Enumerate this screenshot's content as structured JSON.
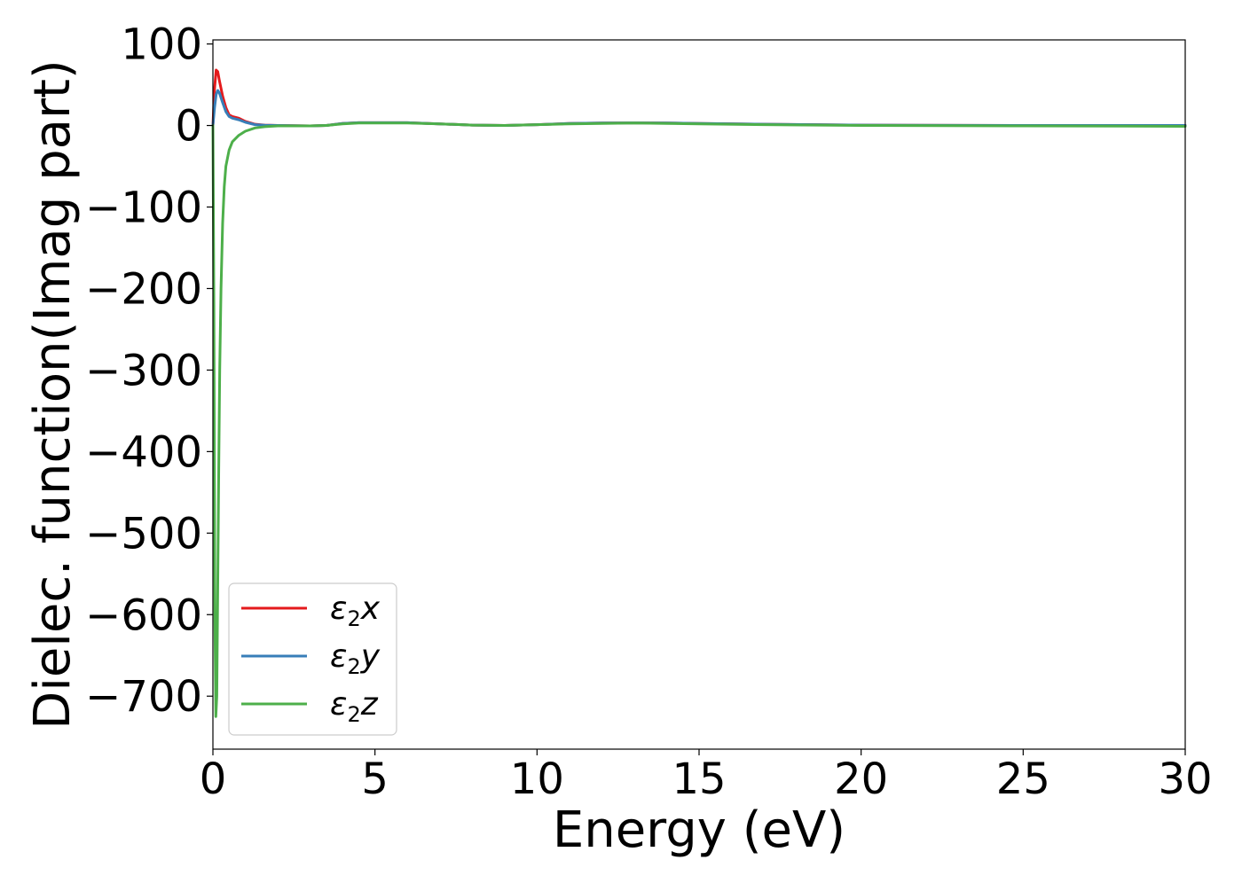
{
  "chart_data": {
    "type": "line",
    "xlabel": "Energy (eV)",
    "ylabel": "Dielec. function(Imag part)",
    "xlim": [
      0,
      30
    ],
    "ylim": [
      -765,
      105
    ],
    "xticks": [
      0,
      5,
      10,
      15,
      20,
      25,
      30
    ],
    "yticks": [
      100,
      0,
      -100,
      -200,
      -300,
      -400,
      -500,
      -600,
      -700
    ],
    "grid": false,
    "legend_position": "lower-left",
    "series": [
      {
        "name": "ε2x",
        "legend": {
          "main": "ε",
          "sub": "2",
          "tail": "x"
        },
        "color": "#e41a1c",
        "x": [
          0,
          0.05,
          0.1,
          0.15,
          0.2,
          0.3,
          0.4,
          0.5,
          0.6,
          0.8,
          1.0,
          1.3,
          1.6,
          2.0,
          3.0,
          3.5,
          4.0,
          4.5,
          5.0,
          5.5,
          6.0,
          7.0,
          8.0,
          9.0,
          10.0,
          11.0,
          12.0,
          13.0,
          14.0,
          15.0,
          17.0,
          20.0,
          25.0,
          30.0
        ],
        "y": [
          0,
          45,
          68,
          66,
          55,
          36,
          22,
          13,
          11,
          9,
          5,
          1.5,
          0.5,
          0,
          -0.5,
          0,
          2.5,
          3.5,
          3.5,
          3.5,
          3.5,
          2,
          0.5,
          0,
          1,
          2.5,
          3,
          3.2,
          3,
          2.5,
          1.5,
          0.5,
          0,
          0
        ]
      },
      {
        "name": "ε2y",
        "legend": {
          "main": "ε",
          "sub": "2",
          "tail": "y"
        },
        "color": "#377eb8",
        "x": [
          0,
          0.05,
          0.1,
          0.15,
          0.2,
          0.3,
          0.4,
          0.5,
          0.6,
          0.8,
          1.0,
          1.3,
          1.6,
          2.0,
          3.0,
          3.5,
          4.0,
          4.5,
          5.0,
          5.5,
          6.0,
          7.0,
          8.0,
          9.0,
          10.0,
          11.0,
          12.0,
          13.0,
          14.0,
          15.0,
          17.0,
          20.0,
          25.0,
          30.0
        ],
        "y": [
          0,
          22,
          38,
          43,
          40,
          28,
          17,
          11,
          9,
          7,
          4,
          1,
          0.3,
          0,
          -0.5,
          0,
          2.5,
          3.5,
          3.5,
          3.5,
          3.5,
          2,
          0.5,
          0,
          1,
          2.5,
          3,
          3.2,
          3,
          2.5,
          1.5,
          0.5,
          0,
          0
        ]
      },
      {
        "name": "ε2z",
        "legend": {
          "main": "ε",
          "sub": "2",
          "tail": "z"
        },
        "color": "#4daf4a",
        "x": [
          0,
          0.03,
          0.06,
          0.09,
          0.12,
          0.15,
          0.18,
          0.21,
          0.25,
          0.3,
          0.35,
          0.4,
          0.5,
          0.6,
          0.8,
          1.0,
          1.3,
          1.6,
          2.0,
          3.0,
          3.5,
          4.0,
          4.5,
          5.0,
          5.5,
          6.0,
          7.0,
          8.0,
          9.0,
          10.0,
          11.0,
          12.0,
          13.0,
          14.0,
          15.0,
          17.0,
          20.0,
          25.0,
          30.0
        ],
        "y": [
          0,
          -220,
          -600,
          -725,
          -700,
          -560,
          -420,
          -300,
          -200,
          -120,
          -75,
          -50,
          -30,
          -20,
          -12,
          -7,
          -3,
          -1.5,
          -0.5,
          -0.5,
          0,
          2,
          3,
          3,
          3,
          3,
          2,
          0.5,
          0,
          1,
          2,
          2.5,
          3,
          2.5,
          2,
          1,
          0,
          -0.5,
          -1
        ]
      }
    ]
  }
}
